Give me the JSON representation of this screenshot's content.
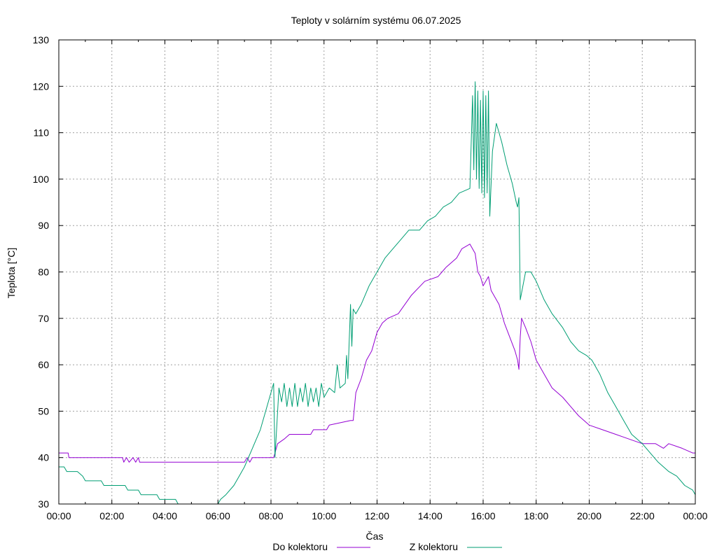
{
  "chart_data": {
    "type": "line",
    "title": "Teploty v solárním systému 06.07.2025",
    "xlabel": "Čas",
    "ylabel": "Teplota [°C]",
    "xlim": [
      0,
      24
    ],
    "ylim": [
      30,
      130
    ],
    "grid": true,
    "legend_position": "bottom",
    "x_ticks": [
      {
        "v": 0,
        "label": "00:00"
      },
      {
        "v": 2,
        "label": "02:00"
      },
      {
        "v": 4,
        "label": "04:00"
      },
      {
        "v": 6,
        "label": "06:00"
      },
      {
        "v": 8,
        "label": "08:00"
      },
      {
        "v": 10,
        "label": "10:00"
      },
      {
        "v": 12,
        "label": "12:00"
      },
      {
        "v": 14,
        "label": "14:00"
      },
      {
        "v": 16,
        "label": "16:00"
      },
      {
        "v": 18,
        "label": "18:00"
      },
      {
        "v": 20,
        "label": "20:00"
      },
      {
        "v": 22,
        "label": "22:00"
      },
      {
        "v": 24,
        "label": "00:00"
      }
    ],
    "y_ticks": [
      {
        "v": 30,
        "label": "30"
      },
      {
        "v": 40,
        "label": "40"
      },
      {
        "v": 50,
        "label": "50"
      },
      {
        "v": 60,
        "label": "60"
      },
      {
        "v": 70,
        "label": "70"
      },
      {
        "v": 80,
        "label": "80"
      },
      {
        "v": 90,
        "label": "90"
      },
      {
        "v": 100,
        "label": "100"
      },
      {
        "v": 110,
        "label": "110"
      },
      {
        "v": 120,
        "label": "120"
      },
      {
        "v": 130,
        "label": "130"
      }
    ],
    "series": [
      {
        "name": "Do kolektoru",
        "color": "#9400d3",
        "points": [
          [
            0.0,
            41
          ],
          [
            0.35,
            41
          ],
          [
            0.38,
            40
          ],
          [
            2.4,
            40
          ],
          [
            2.45,
            39
          ],
          [
            2.55,
            40
          ],
          [
            2.65,
            39
          ],
          [
            2.8,
            40
          ],
          [
            2.9,
            39
          ],
          [
            3.0,
            40
          ],
          [
            3.05,
            39
          ],
          [
            7.0,
            39
          ],
          [
            7.1,
            40
          ],
          [
            7.2,
            39
          ],
          [
            7.3,
            40
          ],
          [
            8.1,
            40
          ],
          [
            8.15,
            41
          ],
          [
            8.25,
            43
          ],
          [
            8.5,
            44
          ],
          [
            8.7,
            45
          ],
          [
            9.5,
            45
          ],
          [
            9.6,
            46
          ],
          [
            10.1,
            46
          ],
          [
            10.2,
            47
          ],
          [
            11.0,
            48
          ],
          [
            11.1,
            48
          ],
          [
            11.2,
            54
          ],
          [
            11.4,
            57
          ],
          [
            11.6,
            61
          ],
          [
            11.8,
            63
          ],
          [
            12.0,
            67
          ],
          [
            12.2,
            69
          ],
          [
            12.4,
            70
          ],
          [
            12.8,
            71
          ],
          [
            13.3,
            75
          ],
          [
            13.8,
            78
          ],
          [
            14.3,
            79
          ],
          [
            14.6,
            81
          ],
          [
            15.0,
            83
          ],
          [
            15.2,
            85
          ],
          [
            15.5,
            86
          ],
          [
            15.7,
            84
          ],
          [
            15.8,
            80
          ],
          [
            15.9,
            79
          ],
          [
            16.0,
            77
          ],
          [
            16.2,
            79
          ],
          [
            16.3,
            76
          ],
          [
            16.6,
            73
          ],
          [
            16.8,
            69
          ],
          [
            17.0,
            66
          ],
          [
            17.2,
            63
          ],
          [
            17.3,
            61
          ],
          [
            17.35,
            59
          ],
          [
            17.4,
            66
          ],
          [
            17.45,
            70
          ],
          [
            17.6,
            68
          ],
          [
            17.8,
            65
          ],
          [
            18.0,
            61
          ],
          [
            18.3,
            58
          ],
          [
            18.6,
            55
          ],
          [
            19.0,
            53
          ],
          [
            19.3,
            51
          ],
          [
            19.6,
            49
          ],
          [
            20.0,
            47
          ],
          [
            20.5,
            46
          ],
          [
            21.0,
            45
          ],
          [
            21.5,
            44
          ],
          [
            22.0,
            43
          ],
          [
            22.5,
            43
          ],
          [
            22.8,
            42
          ],
          [
            23.0,
            43
          ],
          [
            23.5,
            42
          ],
          [
            23.9,
            41
          ],
          [
            24.0,
            41
          ]
        ]
      },
      {
        "name": "Z kolektoru",
        "color": "#009e73",
        "points": [
          [
            0.0,
            38
          ],
          [
            0.2,
            38
          ],
          [
            0.3,
            37
          ],
          [
            0.7,
            37
          ],
          [
            0.9,
            36
          ],
          [
            1.0,
            35
          ],
          [
            1.6,
            35
          ],
          [
            1.7,
            34
          ],
          [
            2.5,
            34
          ],
          [
            2.6,
            33
          ],
          [
            3.0,
            33
          ],
          [
            3.1,
            32
          ],
          [
            3.7,
            32
          ],
          [
            3.8,
            31
          ],
          [
            4.4,
            31
          ],
          [
            4.5,
            30
          ],
          [
            6.0,
            30
          ],
          [
            6.1,
            31
          ],
          [
            6.3,
            32
          ],
          [
            6.6,
            34
          ],
          [
            6.8,
            36
          ],
          [
            7.0,
            38
          ],
          [
            7.3,
            42
          ],
          [
            7.6,
            46
          ],
          [
            7.9,
            52
          ],
          [
            8.1,
            56
          ],
          [
            8.15,
            40
          ],
          [
            8.3,
            55
          ],
          [
            8.4,
            52
          ],
          [
            8.5,
            56
          ],
          [
            8.6,
            51
          ],
          [
            8.7,
            55
          ],
          [
            8.8,
            51
          ],
          [
            8.9,
            56
          ],
          [
            9.0,
            51
          ],
          [
            9.1,
            55
          ],
          [
            9.2,
            52
          ],
          [
            9.3,
            56
          ],
          [
            9.4,
            51
          ],
          [
            9.5,
            55
          ],
          [
            9.6,
            52
          ],
          [
            9.7,
            55
          ],
          [
            9.8,
            51
          ],
          [
            9.9,
            56
          ],
          [
            10.0,
            53
          ],
          [
            10.2,
            55
          ],
          [
            10.4,
            54
          ],
          [
            10.5,
            60
          ],
          [
            10.6,
            55
          ],
          [
            10.8,
            56
          ],
          [
            10.85,
            62
          ],
          [
            10.9,
            57
          ],
          [
            11.0,
            73
          ],
          [
            11.05,
            64
          ],
          [
            11.1,
            72
          ],
          [
            11.2,
            71
          ],
          [
            11.4,
            73
          ],
          [
            11.7,
            77
          ],
          [
            12.0,
            80
          ],
          [
            12.3,
            83
          ],
          [
            12.6,
            85
          ],
          [
            12.9,
            87
          ],
          [
            13.2,
            89
          ],
          [
            13.6,
            89
          ],
          [
            13.9,
            91
          ],
          [
            14.2,
            92
          ],
          [
            14.5,
            94
          ],
          [
            14.8,
            95
          ],
          [
            15.1,
            97
          ],
          [
            15.5,
            98
          ],
          [
            15.6,
            118
          ],
          [
            15.65,
            102
          ],
          [
            15.7,
            121
          ],
          [
            15.75,
            100
          ],
          [
            15.8,
            119
          ],
          [
            15.85,
            98
          ],
          [
            15.9,
            117
          ],
          [
            15.95,
            97
          ],
          [
            16.0,
            119
          ],
          [
            16.05,
            96
          ],
          [
            16.1,
            118
          ],
          [
            16.15,
            97
          ],
          [
            16.2,
            119
          ],
          [
            16.25,
            92
          ],
          [
            16.35,
            106
          ],
          [
            16.5,
            112
          ],
          [
            16.7,
            108
          ],
          [
            16.9,
            103
          ],
          [
            17.1,
            99
          ],
          [
            17.25,
            95
          ],
          [
            17.3,
            94
          ],
          [
            17.35,
            96
          ],
          [
            17.4,
            74
          ],
          [
            17.5,
            77
          ],
          [
            17.6,
            80
          ],
          [
            17.8,
            80
          ],
          [
            18.0,
            78
          ],
          [
            18.3,
            74
          ],
          [
            18.6,
            71
          ],
          [
            19.0,
            68
          ],
          [
            19.3,
            65
          ],
          [
            19.6,
            63
          ],
          [
            19.9,
            62
          ],
          [
            20.1,
            61
          ],
          [
            20.4,
            58
          ],
          [
            20.7,
            54
          ],
          [
            21.0,
            51
          ],
          [
            21.3,
            48
          ],
          [
            21.6,
            45
          ],
          [
            22.0,
            43
          ],
          [
            22.3,
            41
          ],
          [
            22.6,
            39
          ],
          [
            23.0,
            37
          ],
          [
            23.3,
            36
          ],
          [
            23.6,
            34
          ],
          [
            23.9,
            33
          ],
          [
            24.0,
            32
          ]
        ]
      }
    ]
  }
}
